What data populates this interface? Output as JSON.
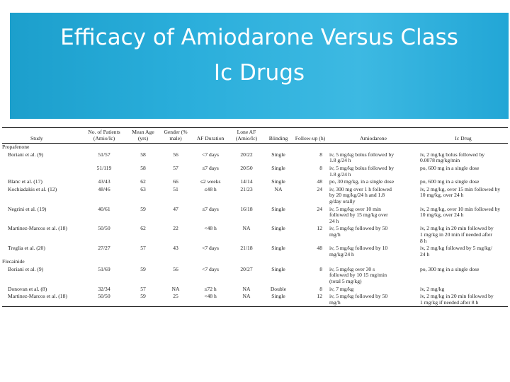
{
  "slide": {
    "title_line1": "Efficacy of Amiodarone Versus Class",
    "title_line2": "Ic Drugs"
  },
  "table": {
    "headers": [
      "Study",
      "No. of Patients (Amio/Ic)",
      "Mean Age (yrs)",
      "Gender (% male)",
      "AF Duration",
      "Lone AF (Amio/Ic)",
      "Blinding",
      "Follow-up (h)",
      "Amiodarone",
      "Ic Drug"
    ],
    "groups": [
      {
        "name": "Propafenone",
        "rows": [
          {
            "study": "Boriani et al. (9)",
            "patients": "51/57",
            "age": "58",
            "gender": "56",
            "duration": "<7 days",
            "lone": "20/22",
            "blinding": "Single",
            "followup": "8",
            "amio": [
              "iv, 5 mg/kg bolus followed by",
              "1.8 g/24 h"
            ],
            "ic": [
              "iv, 2 mg/kg bolus followed by",
              "0.0078 mg/kg/min"
            ]
          },
          {
            "study": "",
            "patients": "51/119",
            "age": "58",
            "gender": "57",
            "duration": "≤7 days",
            "lone": "20/50",
            "blinding": "Single",
            "followup": "8",
            "amio": [
              "iv, 5 mg/kg bolus followed by",
              "1.8 g/24 h"
            ],
            "ic": [
              "po, 600 mg in a single dose"
            ]
          },
          {
            "study": "Blanc et al. (17)",
            "patients": "43/43",
            "age": "62",
            "gender": "66",
            "duration": "≤2 weeks",
            "lone": "14/14",
            "blinding": "Single",
            "followup": "48",
            "amio": [
              "po, 30 mg/kg, in a single dose"
            ],
            "ic": [
              "po, 600 mg in a single dose"
            ]
          },
          {
            "study": "Kochiadakis et al. (12)",
            "patients": "48/46",
            "age": "63",
            "gender": "51",
            "duration": "≤48 h",
            "lone": "21/23",
            "blinding": "NA",
            "followup": "24",
            "amio": [
              "iv, 300 mg over 1 h followed",
              "by 20 mg/kg/24 h and 1.8",
              "g/day orally"
            ],
            "ic": [
              "iv, 2 mg/kg, over 15 min followed by",
              "10 mg/kg, over 24 h"
            ]
          },
          {
            "study": "Negrini et al. (19)",
            "patients": "40/61",
            "age": "59",
            "gender": "47",
            "duration": "≤7 days",
            "lone": "16/18",
            "blinding": "Single",
            "followup": "24",
            "amio": [
              "iv, 5 mg/kg over 10 min",
              "followed by 15 mg/kg over",
              "24 h"
            ],
            "ic": [
              "iv, 2 mg/kg, over 10 min followed by",
              "10 mg/kg, over 24 h"
            ]
          },
          {
            "study": "Martinez-Marcos et al. (18)",
            "patients": "50/50",
            "age": "62",
            "gender": "22",
            "duration": "<48 h",
            "lone": "NA",
            "blinding": "Single",
            "followup": "12",
            "amio": [
              "iv, 5 mg/kg followed by 50",
              "mg/h"
            ],
            "ic": [
              "iv, 2 mg/kg in 20 min followed by",
              "1 mg/kg in 20 min if needed after",
              "8 h"
            ]
          },
          {
            "study": "Treglia et al. (20)",
            "patients": "27/27",
            "age": "57",
            "gender": "43",
            "duration": "<7 days",
            "lone": "21/18",
            "blinding": "Single",
            "followup": "48",
            "amio": [
              "iv, 5 mg/kg followed by 10",
              "mg/kg/24 h"
            ],
            "ic": [
              "iv, 2 mg/kg followed by 5 mg/kg/",
              "24 h"
            ]
          }
        ]
      },
      {
        "name": "Flecainide",
        "rows": [
          {
            "study": "Boriani et al. (9)",
            "patients": "51/69",
            "age": "59",
            "gender": "56",
            "duration": "<7 days",
            "lone": "20/27",
            "blinding": "Single",
            "followup": "8",
            "amio": [
              "iv, 5 mg/kg over 30 s",
              "followed by 10 15 mg/min",
              "(total 5 mg/kg)"
            ],
            "ic": [
              "po, 300 mg in a single dose"
            ]
          },
          {
            "study": "Donovan et al. (8)",
            "patients": "32/34",
            "age": "57",
            "gender": "NA",
            "duration": "≤72 h",
            "lone": "NA",
            "blinding": "Double",
            "followup": "8",
            "amio": [
              "iv, 7 mg/kg"
            ],
            "ic": [
              "iv, 2 mg/kg"
            ]
          },
          {
            "study": "Martinez-Marcos et al. (18)",
            "patients": "50/50",
            "age": "59",
            "gender": "25",
            "duration": "<48 h",
            "lone": "NA",
            "blinding": "Single",
            "followup": "12",
            "amio": [
              "iv, 5 mg/kg followed by 50",
              "mg/h"
            ],
            "ic": [
              "iv, 2 mg/kg in 20 min followed by",
              "1 mg/kg if needed after 8 h"
            ]
          }
        ]
      }
    ]
  }
}
